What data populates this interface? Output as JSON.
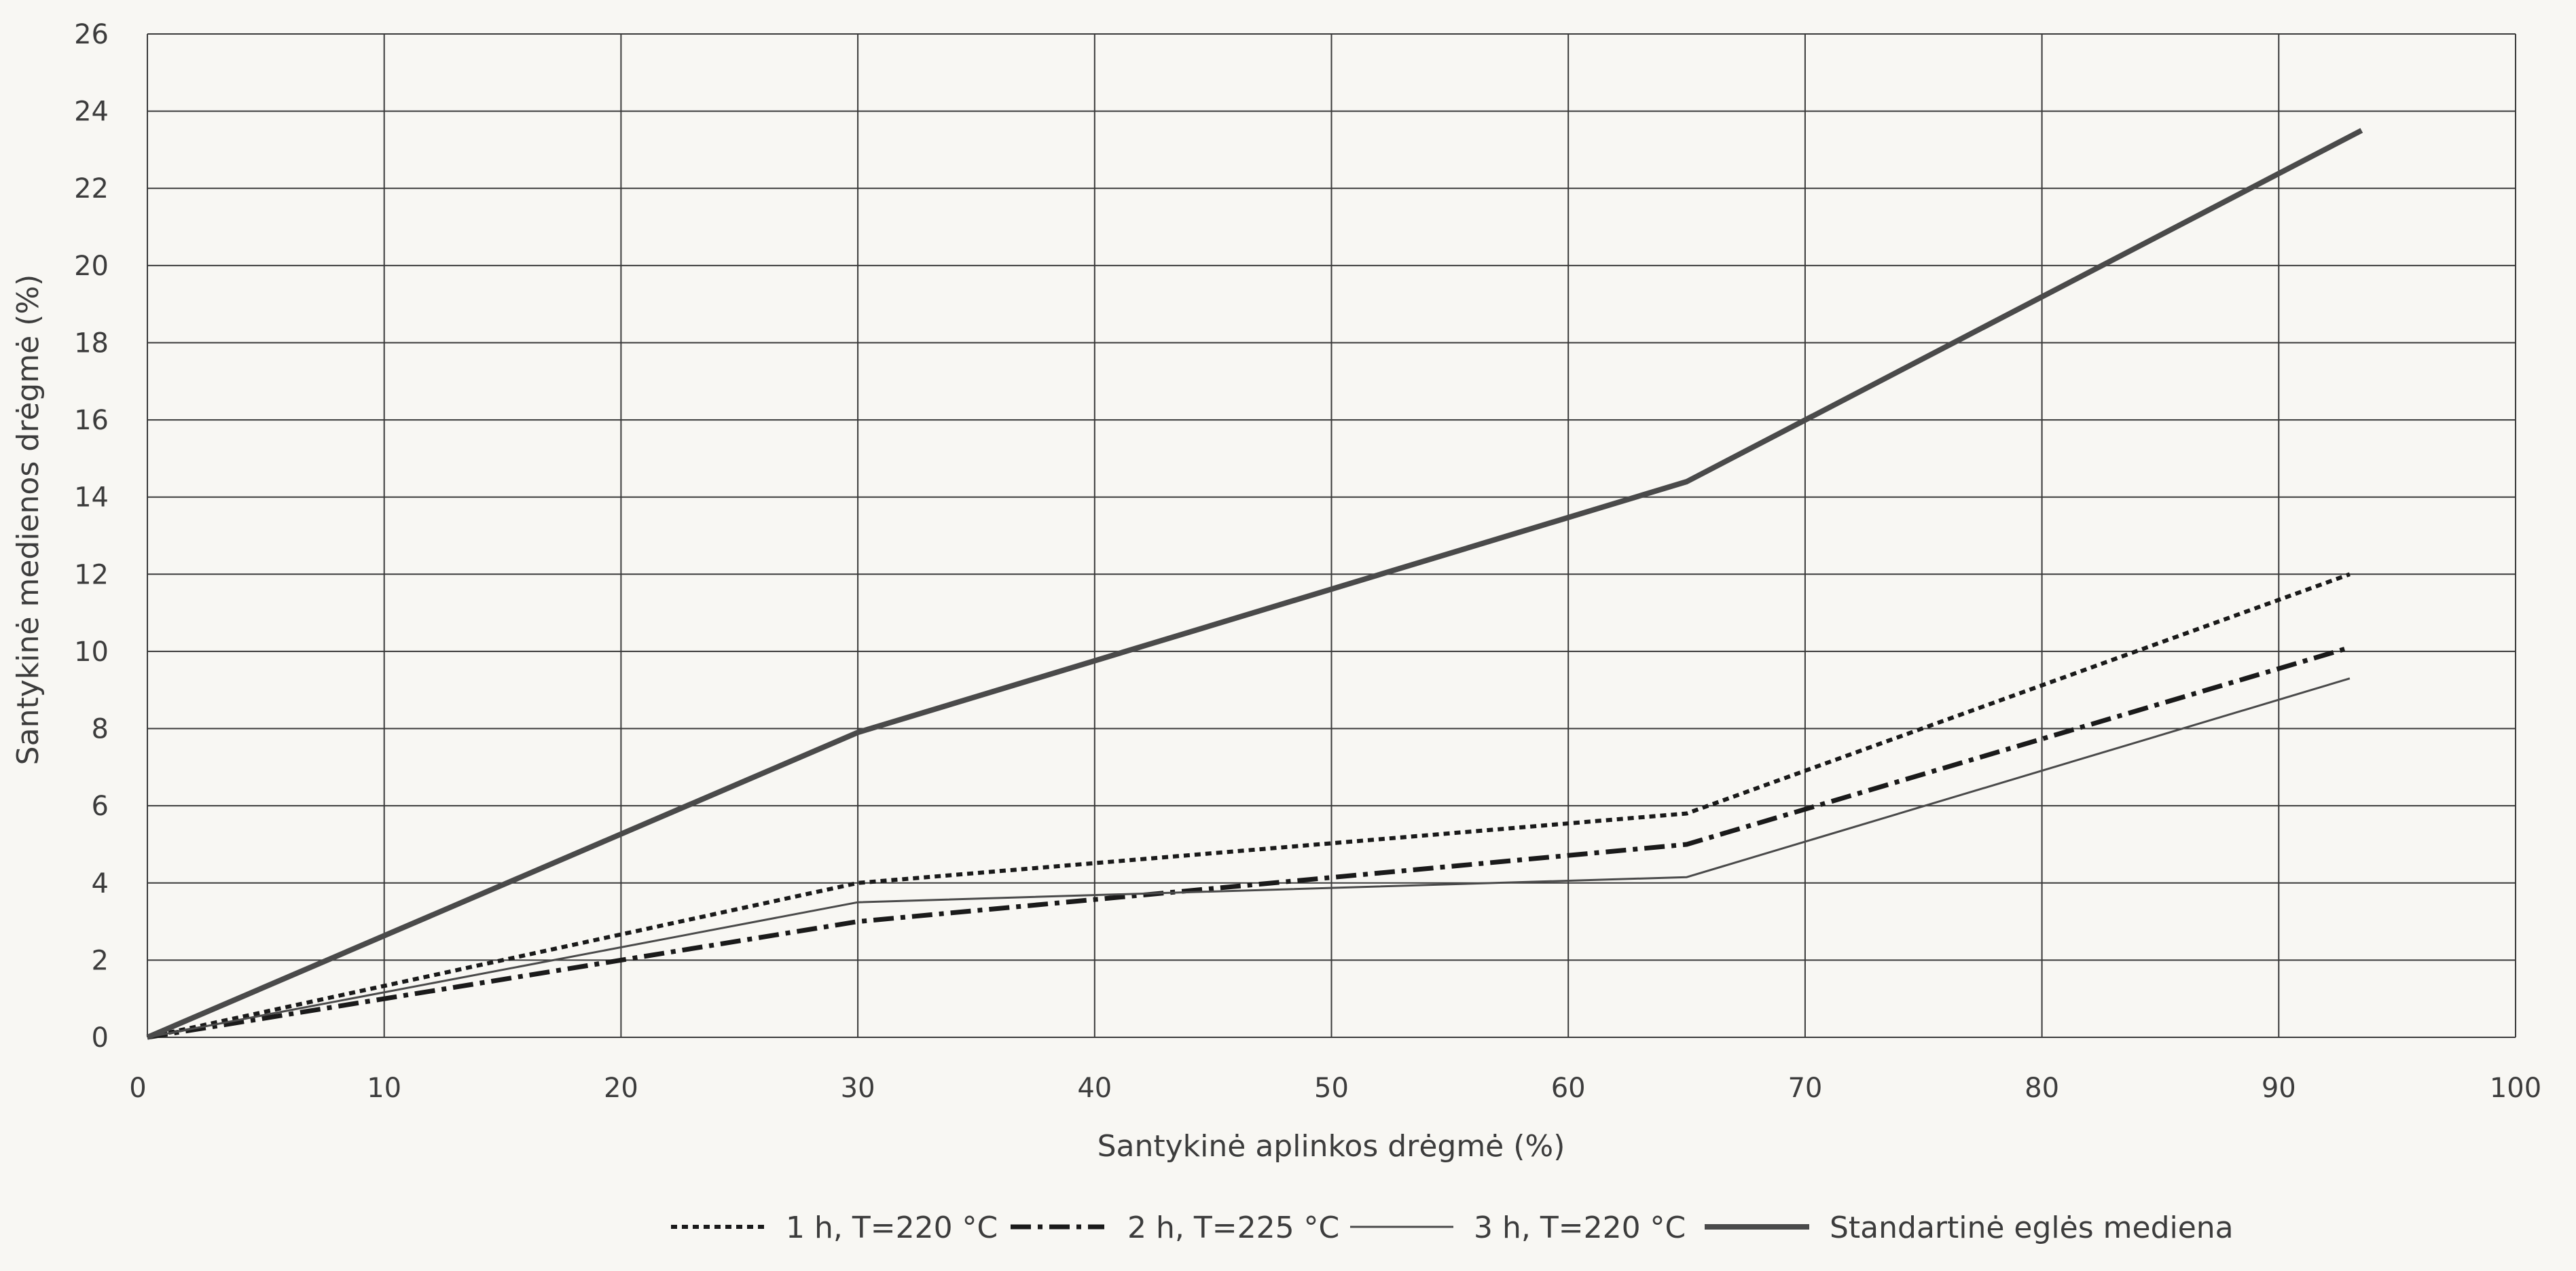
{
  "chart_data": {
    "type": "line",
    "title": "",
    "xlabel": "Santykinė aplinkos drėgmė (%)",
    "ylabel": "Santykinė medienos drėgmė (%)",
    "xlim": [
      0,
      100
    ],
    "ylim": [
      0,
      26
    ],
    "xticks": [
      "0",
      "10",
      "20",
      "30",
      "40",
      "50",
      "60",
      "70",
      "80",
      "90",
      "100"
    ],
    "yticks": [
      "0",
      "2",
      "4",
      "6",
      "8",
      "10",
      "12",
      "14",
      "16",
      "18",
      "20",
      "22",
      "24",
      "26"
    ],
    "grid": true,
    "legend_position": "bottom",
    "series": [
      {
        "name": "1 h, T=220 °C",
        "style": "dotted",
        "color": "#1a1a1a",
        "points": [
          [
            0,
            0
          ],
          [
            30,
            4.0
          ],
          [
            65,
            5.8
          ],
          [
            93,
            12.0
          ]
        ]
      },
      {
        "name": "2 h, T=225 °C",
        "style": "dash-dot",
        "color": "#1a1a1a",
        "points": [
          [
            0,
            0
          ],
          [
            30,
            3.0
          ],
          [
            65,
            5.0
          ],
          [
            93,
            10.1
          ]
        ]
      },
      {
        "name": "3 h, T=220 °C",
        "style": "thin",
        "color": "#4a4a4a",
        "points": [
          [
            0,
            0
          ],
          [
            30,
            3.5
          ],
          [
            65,
            4.15
          ],
          [
            93,
            9.3
          ]
        ]
      },
      {
        "name": "Standartinė eglės mediena",
        "style": "thick",
        "color": "#4a4a4a",
        "points": [
          [
            0,
            0
          ],
          [
            30,
            7.9
          ],
          [
            65,
            14.4
          ],
          [
            93.5,
            23.5
          ]
        ]
      }
    ]
  }
}
